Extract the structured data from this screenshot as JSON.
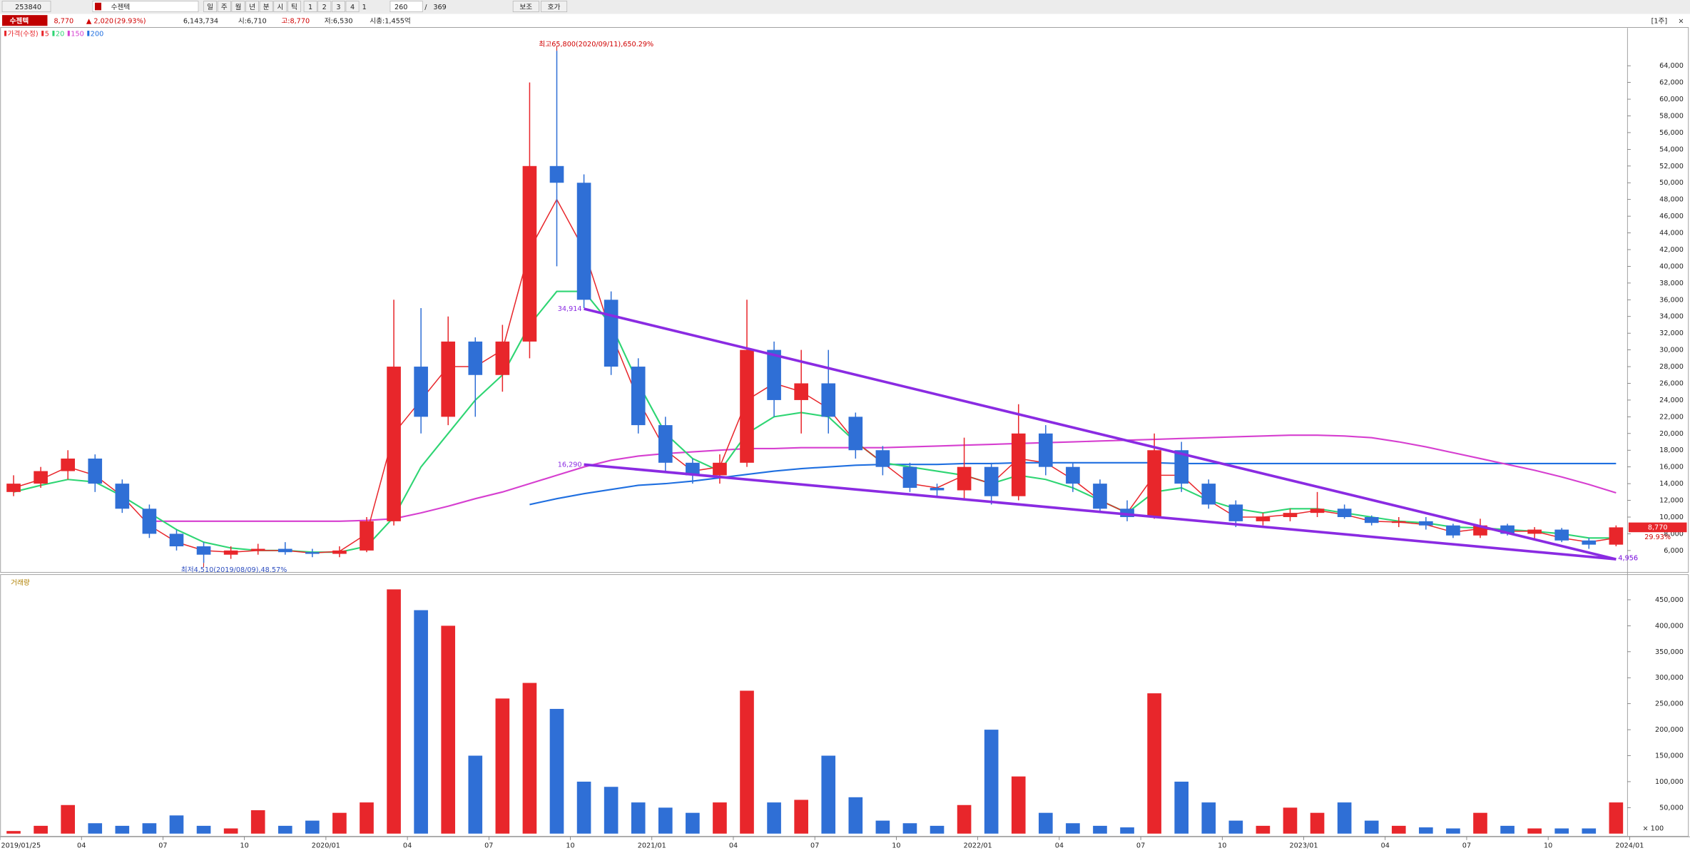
{
  "toolbar": {
    "code": "253840",
    "name": "수젠텍",
    "periods": [
      "일",
      "주",
      "월",
      "년",
      "분",
      "시",
      "틱"
    ],
    "pages": [
      "1",
      "2",
      "3",
      "4"
    ],
    "unit": "1",
    "count": "260",
    "separator": "/",
    "total": "369",
    "buttons": [
      "보조",
      "호가"
    ]
  },
  "info": {
    "name": "수젠텍",
    "price": "8,770",
    "change": "▲ 2,020",
    "rate": "(29.93%)",
    "volume": "6,143,734",
    "open": "시:6,710",
    "high": "고:8,770",
    "low": "저:6,530",
    "cap": "시총:1,455억"
  },
  "panel": {
    "period": "[1주]",
    "close": "×"
  },
  "chart_data": [
    {
      "type": "candlestick",
      "up_color": "#e8262b",
      "down_color": "#2f6fd6",
      "categories": [
        "2019/01/25",
        null,
        null,
        "04",
        null,
        null,
        "07",
        null,
        null,
        "10",
        null,
        null,
        "2020/01",
        null,
        null,
        "04",
        null,
        null,
        "07",
        null,
        null,
        "10",
        null,
        null,
        "2021/01",
        null,
        null,
        "04",
        null,
        null,
        "07",
        null,
        null,
        "10",
        null,
        null,
        "2022/01",
        null,
        null,
        "04",
        null,
        null,
        "07",
        null,
        null,
        "10",
        null,
        null,
        "2023/01",
        null,
        null,
        "04",
        null,
        null,
        "07",
        null,
        null,
        "10",
        null,
        null,
        "2024/01"
      ],
      "series": [
        {
          "name": "가격(수정)",
          "color": "#e8262b",
          "open": [
            13000,
            14000,
            15500,
            17000,
            14000,
            11000,
            8000,
            6500,
            5500,
            6000,
            6200,
            5800,
            5600,
            6000,
            9500,
            28000,
            22000,
            31000,
            27000,
            31000,
            52000,
            50000,
            36000,
            28000,
            21000,
            16500,
            15000,
            16500,
            30000,
            24000,
            26000,
            22000,
            18000,
            16000,
            13500,
            13200,
            16000,
            12500,
            20000,
            16000,
            14000,
            11000,
            10000,
            18000,
            14000,
            11500,
            9500,
            10000,
            10500,
            11000,
            10000,
            9300,
            9500,
            9000,
            7800,
            9000,
            8000,
            8500,
            7200,
            6700,
            null
          ],
          "high": [
            15000,
            16000,
            18000,
            17500,
            14500,
            11500,
            8500,
            7000,
            6500,
            6800,
            7000,
            6200,
            6500,
            10000,
            36000,
            35000,
            34000,
            31500,
            33000,
            62000,
            65800,
            51000,
            37000,
            29000,
            22000,
            17000,
            17500,
            36000,
            31000,
            30000,
            30000,
            22500,
            18500,
            16500,
            14000,
            19500,
            16500,
            23500,
            21000,
            16500,
            14500,
            12000,
            20000,
            19000,
            14500,
            12000,
            10500,
            11000,
            13000,
            11500,
            10200,
            10000,
            10000,
            9200,
            9800,
            9200,
            8800,
            8700,
            7500,
            9000,
            null
          ],
          "low": [
            12500,
            13500,
            14500,
            13000,
            10500,
            7500,
            6000,
            4510,
            5000,
            5500,
            5500,
            5200,
            5200,
            5800,
            9000,
            20000,
            21000,
            22000,
            25000,
            29000,
            40000,
            35000,
            27000,
            20000,
            15500,
            14000,
            14000,
            16000,
            22000,
            20000,
            20000,
            17000,
            15000,
            13000,
            12500,
            12000,
            11500,
            12000,
            15000,
            13000,
            10500,
            9500,
            9800,
            13000,
            11000,
            8800,
            9000,
            9500,
            10000,
            9800,
            9000,
            8800,
            8500,
            7500,
            7500,
            7800,
            7200,
            7000,
            6200,
            6500,
            null
          ],
          "close": [
            14000,
            15500,
            17000,
            14000,
            11000,
            8000,
            6500,
            5500,
            6000,
            6200,
            5800,
            5600,
            6000,
            9500,
            28000,
            22000,
            31000,
            27000,
            31000,
            52000,
            50000,
            36000,
            28000,
            21000,
            16500,
            15000,
            16500,
            30000,
            24000,
            26000,
            22000,
            18000,
            16000,
            13500,
            13200,
            16000,
            12500,
            20000,
            16000,
            14000,
            11000,
            10000,
            18000,
            14000,
            11500,
            9500,
            10000,
            10500,
            11000,
            10000,
            9300,
            9500,
            9000,
            7800,
            9000,
            8000,
            8500,
            7200,
            6700,
            8770,
            null
          ]
        },
        {
          "name": "5",
          "color": "#e8262b",
          "values": [
            13500,
            14500,
            16000,
            15000,
            12500,
            9000,
            7000,
            6000,
            5800,
            6000,
            6000,
            5700,
            5900,
            8000,
            20000,
            24000,
            28000,
            28000,
            30000,
            42000,
            48000,
            42000,
            32000,
            24000,
            18000,
            15500,
            16000,
            24000,
            26000,
            25000,
            23000,
            19000,
            16500,
            14000,
            13500,
            15000,
            14000,
            17000,
            16500,
            14500,
            12000,
            10500,
            15000,
            15000,
            12000,
            10000,
            10000,
            10300,
            10800,
            10300,
            9500,
            9400,
            9100,
            8200,
            8600,
            8300,
            8300,
            7500,
            7000,
            7500,
            null
          ]
        },
        {
          "name": "20",
          "color": "#2ed573",
          "values": [
            13000,
            13800,
            14500,
            14200,
            12500,
            10500,
            8500,
            7000,
            6300,
            6000,
            6000,
            5800,
            5800,
            6500,
            10000,
            16000,
            20000,
            24000,
            27000,
            33000,
            37000,
            37000,
            33000,
            26000,
            20000,
            17000,
            15500,
            20000,
            22000,
            22500,
            22000,
            19000,
            16500,
            16000,
            15500,
            15000,
            14000,
            15000,
            14500,
            13500,
            12000,
            10500,
            13000,
            13500,
            12000,
            11000,
            10500,
            11000,
            11000,
            10500,
            10000,
            9500,
            9300,
            8800,
            8700,
            8500,
            8300,
            8000,
            7500,
            7500,
            null
          ]
        },
        {
          "name": "150",
          "color": "#d63fd0",
          "values": [
            null,
            null,
            null,
            null,
            null,
            9500,
            9500,
            9500,
            9500,
            9500,
            9500,
            9500,
            9500,
            9600,
            9800,
            10500,
            11300,
            12200,
            13000,
            14000,
            15000,
            16000,
            16800,
            17300,
            17600,
            17800,
            18000,
            18200,
            18200,
            18300,
            18300,
            18300,
            18300,
            18400,
            18500,
            18600,
            18700,
            18800,
            18900,
            19000,
            19100,
            19200,
            19300,
            19400,
            19500,
            19600,
            19700,
            19800,
            19800,
            19700,
            19500,
            19000,
            18400,
            17700,
            17000,
            16300,
            15600,
            14800,
            13900,
            12900,
            null
          ]
        },
        {
          "name": "200",
          "color": "#1f6fe0",
          "values": [
            null,
            null,
            null,
            null,
            null,
            null,
            null,
            null,
            null,
            null,
            null,
            null,
            null,
            null,
            null,
            null,
            null,
            null,
            null,
            11500,
            12200,
            12800,
            13300,
            13800,
            14000,
            14300,
            14700,
            15100,
            15500,
            15800,
            16000,
            16200,
            16300,
            16300,
            16300,
            16400,
            16400,
            16500,
            16500,
            16500,
            16500,
            16500,
            16500,
            16400,
            16400,
            16400,
            16400,
            16400,
            16400,
            16400,
            16400,
            16400,
            16400,
            16400,
            16400,
            16400,
            16400,
            16400,
            16400,
            16400,
            null
          ]
        }
      ],
      "trendlines": [
        {
          "color": "#8a2be2",
          "x": [
            21,
            59
          ],
          "values": [
            34914,
            4956
          ],
          "value_labels": [
            "34,914",
            "4,956"
          ]
        },
        {
          "color": "#8a2be2",
          "x": [
            21,
            59
          ],
          "values": [
            16290,
            4956
          ],
          "value_labels": [
            "16,290",
            "4,956"
          ]
        }
      ],
      "annotations": [
        {
          "text": "최고65,800(2020/09/11),650.29%",
          "x": 20,
          "value": 65800
        },
        {
          "text": "최저4,510(2019/08/09),48.57%",
          "x": 7,
          "value": 4510
        }
      ],
      "last": {
        "value": 8770,
        "label": "8,770",
        "change": "29.93%"
      },
      "ylim": [
        4600,
        68000
      ],
      "yticks": [
        {
          "value": 6000,
          "label": "6,000"
        },
        {
          "value": 8000,
          "label": "8,000"
        },
        {
          "value": 10000,
          "label": "10,000"
        },
        {
          "value": 12000,
          "label": "12,000"
        },
        {
          "value": 14000,
          "label": "14,000"
        },
        {
          "value": 16000,
          "label": "16,000"
        },
        {
          "value": 18000,
          "label": "18,000"
        },
        {
          "value": 20000,
          "label": "20,000"
        },
        {
          "value": 22000,
          "label": "22,000"
        },
        {
          "value": 24000,
          "label": "24,000"
        },
        {
          "value": 26000,
          "label": "26,000"
        },
        {
          "value": 28000,
          "label": "28,000"
        },
        {
          "value": 30000,
          "label": "30,000"
        },
        {
          "value": 32000,
          "label": "32,000"
        },
        {
          "value": 34000,
          "label": "34,000"
        },
        {
          "value": 36000,
          "label": "36,000"
        },
        {
          "value": 38000,
          "label": "38,000"
        },
        {
          "value": 40000,
          "label": "40,000"
        },
        {
          "value": 42000,
          "label": "42,000"
        },
        {
          "value": 44000,
          "label": "44,000"
        },
        {
          "value": 46000,
          "label": "46,000"
        },
        {
          "value": 48000,
          "label": "48,000"
        },
        {
          "value": 50000,
          "label": "50,000"
        },
        {
          "value": 52000,
          "label": "52,000"
        },
        {
          "value": 54000,
          "label": "54,000"
        },
        {
          "value": 56000,
          "label": "56,000"
        },
        {
          "value": 58000,
          "label": "58,000"
        },
        {
          "value": 60000,
          "label": "60,000"
        },
        {
          "value": 62000,
          "label": "62,000"
        },
        {
          "value": 64000,
          "label": "64,000"
        }
      ]
    },
    {
      "type": "bar",
      "title": "거래량",
      "unit_label": "× 100",
      "up_color": "#e8262b",
      "down_color": "#2f6fd6",
      "values": [
        5000,
        15000,
        55000,
        20000,
        15000,
        20000,
        35000,
        15000,
        10000,
        45000,
        15000,
        25000,
        40000,
        60000,
        470000,
        430000,
        400000,
        150000,
        260000,
        290000,
        240000,
        100000,
        90000,
        60000,
        50000,
        40000,
        60000,
        275000,
        60000,
        65000,
        150000,
        70000,
        25000,
        20000,
        15000,
        55000,
        200000,
        110000,
        40000,
        20000,
        15000,
        12000,
        270000,
        100000,
        60000,
        25000,
        15000,
        50000,
        40000,
        60000,
        25000,
        15000,
        12000,
        10000,
        40000,
        15000,
        10000,
        10000,
        10000,
        60000,
        null
      ],
      "ylim": [
        0,
        485000
      ],
      "yticks": [
        {
          "value": 50000,
          "label": "50,000"
        },
        {
          "value": 100000,
          "label": "100,000"
        },
        {
          "value": 150000,
          "label": "150,000"
        },
        {
          "value": 200000,
          "label": "200,000"
        },
        {
          "value": 250000,
          "label": "250,000"
        },
        {
          "value": 300000,
          "label": "300,000"
        },
        {
          "value": 350000,
          "label": "350,000"
        },
        {
          "value": 400000,
          "label": "400,000"
        },
        {
          "value": 450000,
          "label": "450,000"
        }
      ]
    }
  ]
}
